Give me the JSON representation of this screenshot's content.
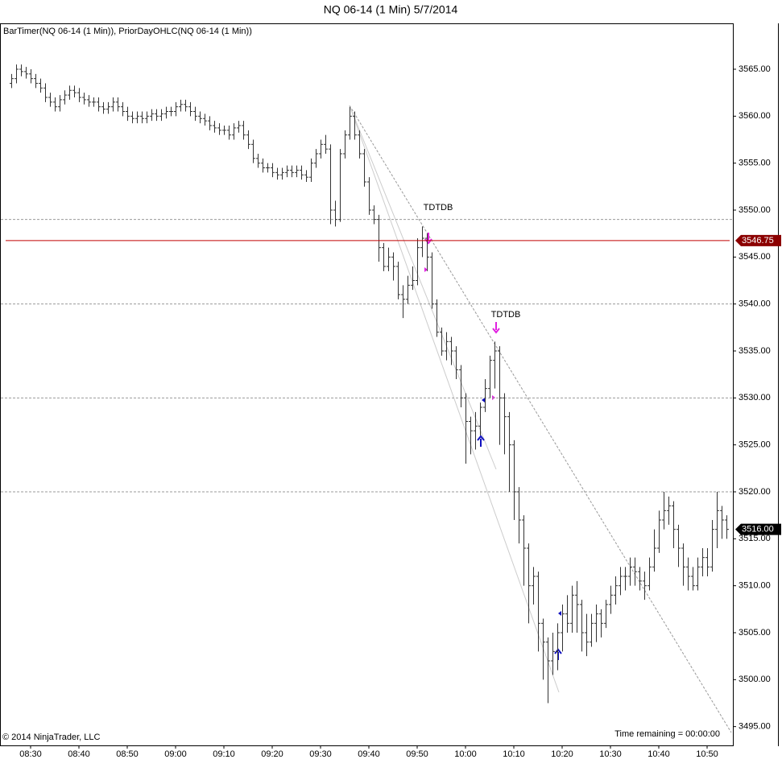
{
  "chart_data": {
    "type": "ohlc",
    "title": "NQ 06-14 (1 Min)  5/7/2014",
    "indicator_label": "BarTimer(NQ 06-14 (1 Min)), PriorDayOHLC(NQ 06-14 (1 Min))",
    "copyright": "© 2014 NinjaTrader, LLC",
    "timer_text": "Time remaining = 00:00:00",
    "annotations": [
      "TDTDB",
      "TDTDB"
    ],
    "color": "#333333",
    "categories": [
      null,
      null,
      null,
      null,
      "08:30",
      null,
      null,
      null,
      null,
      null,
      null,
      null,
      null,
      null,
      "08:40",
      null,
      null,
      null,
      null,
      null,
      null,
      null,
      null,
      null,
      "08:50",
      null,
      null,
      null,
      null,
      null,
      null,
      null,
      null,
      null,
      "09:00",
      null,
      null,
      null,
      null,
      null,
      null,
      null,
      null,
      null,
      "09:10",
      null,
      null,
      null,
      null,
      null,
      null,
      null,
      null,
      null,
      "09:20",
      null,
      null,
      null,
      null,
      null,
      null,
      null,
      null,
      null,
      "09:30",
      null,
      null,
      null,
      null,
      null,
      null,
      null,
      null,
      null,
      "09:40",
      null,
      null,
      null,
      null,
      null,
      null,
      null,
      null,
      null,
      "09:50",
      null,
      null,
      null,
      null,
      null,
      null,
      null,
      null,
      null,
      "10:00",
      null,
      null,
      null,
      null,
      null,
      null,
      null,
      null,
      null,
      "10:10",
      null,
      null,
      null,
      null,
      null,
      null,
      null,
      null,
      null,
      "10:20",
      null,
      null,
      null,
      null,
      null,
      null,
      null,
      null,
      null,
      "10:30",
      null,
      null,
      null,
      null,
      null,
      null,
      null,
      null,
      null,
      "10:40",
      null,
      null,
      null,
      null,
      null,
      null,
      null,
      null,
      null,
      "10:50",
      null,
      null,
      null,
      null
    ],
    "open": [
      3563.5,
      3564,
      3565,
      3564.75,
      3564.5,
      3564,
      3563.5,
      3563,
      3562,
      3561.5,
      3561,
      3561.75,
      3562.25,
      3562.75,
      3562.5,
      3562,
      3561.75,
      3561.5,
      3561.5,
      3561,
      3560.75,
      3561,
      3561.5,
      3561,
      3560.5,
      3560,
      3559.75,
      3560,
      3559.75,
      3560,
      3560.25,
      3560,
      3560.25,
      3560.5,
      3560.5,
      3561,
      3561.25,
      3561,
      3560.5,
      3560,
      3559.75,
      3559.5,
      3559,
      3558.75,
      3558.5,
      3558.5,
      3558,
      3558.75,
      3559,
      3558,
      3557,
      3555.5,
      3555,
      3554.5,
      3554.5,
      3554,
      3553.75,
      3554,
      3554.25,
      3554,
      3554.25,
      3553.75,
      3553.5,
      3555,
      3556,
      3557,
      3556.5,
      3550,
      3549,
      3556,
      3558,
      3560,
      3558,
      3556,
      3553,
      3550,
      3549,
      3546,
      3544,
      3545,
      3544,
      3541,
      3540.5,
      3542,
      3542.5,
      3546,
      3547,
      3545,
      3540,
      3537,
      3535,
      3536,
      3535,
      3533,
      3530,
      3527.5,
      3526.5,
      3527,
      3529,
      3531,
      3534,
      3535,
      3530,
      3528,
      3525,
      3520,
      3517,
      3514,
      3510,
      3511,
      3506,
      3504,
      3502,
      3503,
      3505,
      3507,
      3506,
      3509,
      3508,
      3505,
      3504,
      3506,
      3507,
      3506,
      3508,
      3509,
      3510,
      3511,
      3511,
      3512,
      3511.5,
      3510.5,
      3510,
      3512,
      3514,
      3517,
      3518,
      3518.5,
      3516,
      3514,
      3512,
      3511,
      3510,
      3512,
      3513,
      3512,
      3516,
      3518,
      3517
    ],
    "high": [
      3564.5,
      3565.5,
      3565.5,
      3565.25,
      3565,
      3564.5,
      3564,
      3563.5,
      3562.5,
      3562,
      3562.25,
      3562.75,
      3563.25,
      3563.25,
      3563,
      3562.5,
      3562.25,
      3562,
      3562,
      3561.5,
      3561.5,
      3562,
      3562,
      3561.5,
      3561,
      3560.5,
      3560.5,
      3560.5,
      3560.5,
      3560.75,
      3560.75,
      3560.75,
      3561,
      3561,
      3561.5,
      3561.75,
      3561.75,
      3561.5,
      3561,
      3560.5,
      3560.25,
      3560,
      3559.5,
      3559.25,
      3559,
      3559,
      3559.25,
      3559.5,
      3559.5,
      3558.5,
      3557.5,
      3556,
      3555.5,
      3555,
      3555,
      3554.5,
      3554.5,
      3554.75,
      3554.75,
      3554.75,
      3554.75,
      3554.25,
      3555.5,
      3556.5,
      3557.5,
      3558,
      3557,
      3551,
      3556.5,
      3558.5,
      3561,
      3560.5,
      3558.5,
      3556.5,
      3553.5,
      3550.5,
      3549.5,
      3546.5,
      3546,
      3545.5,
      3544.5,
      3542,
      3543,
      3544,
      3547,
      3548.25,
      3547.5,
      3545.5,
      3540.5,
      3537.5,
      3537,
      3536.5,
      3535.5,
      3533.5,
      3530.5,
      3528,
      3528.5,
      3529.5,
      3532,
      3534.5,
      3536,
      3535.5,
      3530.5,
      3528.5,
      3525.5,
      3520.5,
      3517.5,
      3514.5,
      3512,
      3511.5,
      3506.5,
      3504.5,
      3505,
      3506,
      3508,
      3509,
      3510,
      3510.5,
      3508.5,
      3507,
      3507,
      3508,
      3507.5,
      3508.5,
      3510,
      3511,
      3512,
      3512,
      3513,
      3513,
      3512,
      3511.5,
      3513,
      3516,
      3518,
      3520,
      3519.5,
      3519,
      3516.5,
      3514.5,
      3513,
      3512,
      3513,
      3514,
      3514,
      3517,
      3520,
      3518.5,
      3517.5
    ],
    "low": [
      3563,
      3563.5,
      3564.25,
      3564,
      3563.5,
      3563,
      3562.5,
      3561.5,
      3561,
      3560.5,
      3560.5,
      3561.25,
      3561.75,
      3562,
      3561.5,
      3561.25,
      3561,
      3561,
      3560.5,
      3560.25,
      3560.25,
      3560.5,
      3560.5,
      3560,
      3559.5,
      3559.25,
      3559.25,
      3559.25,
      3559.25,
      3559.5,
      3559.5,
      3559.5,
      3559.75,
      3560,
      3560,
      3560.5,
      3560.5,
      3560,
      3559.5,
      3559.25,
      3559,
      3558.5,
      3558.25,
      3558,
      3558,
      3557.5,
      3557.5,
      3558.25,
      3557.5,
      3556.5,
      3555,
      3554.5,
      3554,
      3554,
      3553.5,
      3553.25,
      3553.25,
      3553.5,
      3553.5,
      3553.5,
      3553.25,
      3553,
      3553,
      3554.5,
      3555.5,
      3556,
      3548.5,
      3548.25,
      3548.75,
      3555.5,
      3557.5,
      3557.5,
      3555.5,
      3552.5,
      3549.5,
      3548.5,
      3544.5,
      3543.5,
      3543.5,
      3542.5,
      3540.5,
      3538.5,
      3540,
      3541.5,
      3542,
      3545,
      3543.5,
      3539.5,
      3536.5,
      3534.5,
      3534,
      3533.5,
      3532,
      3529,
      3523,
      3524,
      3524.5,
      3526,
      3528.5,
      3530,
      3531,
      3525,
      3524,
      3520,
      3517,
      3514.5,
      3510,
      3506,
      3508,
      3503,
      3500,
      3497.5,
      3500.5,
      3501,
      3503,
      3505,
      3505,
      3505,
      3503,
      3502.5,
      3503.5,
      3504,
      3504.5,
      3505.5,
      3507,
      3508,
      3509,
      3509.5,
      3510,
      3510,
      3509.5,
      3508.5,
      3509.5,
      3511.5,
      3513.5,
      3516,
      3516.5,
      3514,
      3512,
      3510,
      3509.5,
      3509.5,
      3509.5,
      3511,
      3511,
      3511.5,
      3514,
      3515,
      3515
    ],
    "close": [
      3564,
      3565,
      3564.75,
      3564.5,
      3564,
      3563.5,
      3563,
      3562,
      3561.5,
      3561,
      3561.75,
      3562.25,
      3562.75,
      3562.5,
      3562,
      3561.75,
      3561.5,
      3561.5,
      3561,
      3560.75,
      3561,
      3561.5,
      3561,
      3560.5,
      3560,
      3559.75,
      3560,
      3559.75,
      3560,
      3560.25,
      3560,
      3560.25,
      3560.5,
      3560.5,
      3561,
      3561.25,
      3561,
      3560.5,
      3560,
      3559.75,
      3559.5,
      3559,
      3558.75,
      3558.5,
      3558.5,
      3558,
      3558.75,
      3559,
      3558,
      3557,
      3555.5,
      3555,
      3554.5,
      3554.5,
      3554,
      3553.75,
      3554,
      3554.25,
      3554,
      3554.25,
      3553.75,
      3553.5,
      3555,
      3556,
      3557,
      3556.5,
      3550,
      3549,
      3556,
      3558,
      3560,
      3558,
      3556,
      3553,
      3550,
      3549,
      3546,
      3544,
      3545,
      3544,
      3541,
      3540.5,
      3542,
      3542.5,
      3546,
      3547,
      3545,
      3540,
      3537,
      3535,
      3536,
      3535,
      3533,
      3530,
      3527.5,
      3526.5,
      3527,
      3529,
      3531,
      3534,
      3535,
      3530,
      3528,
      3525,
      3520,
      3517,
      3514,
      3510,
      3511,
      3506,
      3504,
      3502,
      3503,
      3505,
      3507,
      3506,
      3509,
      3508,
      3505,
      3504,
      3506,
      3507,
      3506,
      3508,
      3509,
      3510,
      3511,
      3511,
      3512,
      3511.5,
      3510.5,
      3510,
      3512,
      3514,
      3517,
      3518,
      3518.5,
      3516,
      3514,
      3512,
      3511,
      3510,
      3512,
      3513,
      3512,
      3516,
      3518,
      3517,
      3516
    ],
    "ylim": [
      3493,
      3569.8
    ],
    "yticks": [
      {
        "value": 3495,
        "label": "3495.00"
      },
      {
        "value": 3500,
        "label": "3500.00"
      },
      {
        "value": 3505,
        "label": "3505.00"
      },
      {
        "value": 3510,
        "label": "3510.00"
      },
      {
        "value": 3515,
        "label": "3515.00"
      },
      {
        "value": 3520,
        "label": "3520.00"
      },
      {
        "value": 3525,
        "label": "3525.00"
      },
      {
        "value": 3530,
        "label": "3530.00"
      },
      {
        "value": 3535,
        "label": "3535.00"
      },
      {
        "value": 3540,
        "label": "3540.00"
      },
      {
        "value": 3545,
        "label": "3545.00"
      },
      {
        "value": 3550,
        "label": "3550.00"
      },
      {
        "value": 3555,
        "label": "3555.00"
      },
      {
        "value": 3560,
        "label": "3560.00"
      },
      {
        "value": 3565,
        "label": "3565.00"
      }
    ],
    "reference_lines": [
      3549,
      3540,
      3530,
      3520
    ],
    "price_markers": [
      {
        "value": 3546.75,
        "label": "3546.75",
        "color": "#8b0000",
        "line_color": "#c00000"
      },
      {
        "value": 3516,
        "label": "3516.00",
        "color": "#000000"
      }
    ]
  }
}
